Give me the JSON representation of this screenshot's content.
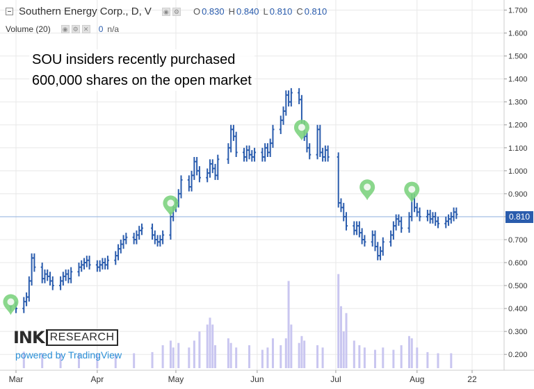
{
  "legend": {
    "symbol_title": "Southern Energy Corp., D, V",
    "ohlc": [
      {
        "key": "O",
        "value": "0.830"
      },
      {
        "key": "H",
        "value": "0.840"
      },
      {
        "key": "L",
        "value": "0.810"
      },
      {
        "key": "C",
        "value": "0.810"
      }
    ],
    "volume_label": "Volume (20)",
    "volume_value": "0",
    "volume_ma": "n/a"
  },
  "annotation": {
    "line1": "SOU insiders recently purchased",
    "line2": "600,000 shares on the open market"
  },
  "branding": {
    "ink": "INK",
    "research": "RESEARCH",
    "powered_by": "powered by TradingView"
  },
  "last_price_label": "0.810",
  "colors": {
    "bars": "#2a5cad",
    "volume": "#c9c6f0",
    "marker": "#7dd37f",
    "grid": "#e8e8e8",
    "price_line": "#8fb1e0",
    "accent": "#2a5cad"
  },
  "chart_data": {
    "type": "ohlc",
    "ylim": [
      0.15,
      1.72
    ],
    "y_ticks": [
      "1.700",
      "1.600",
      "1.500",
      "1.400",
      "1.300",
      "1.200",
      "1.100",
      "1.000",
      "0.900",
      "0.800",
      "0.700",
      "0.600",
      "0.500",
      "0.400",
      "0.300",
      "0.200"
    ],
    "x_ticks": [
      {
        "label": "Mar",
        "date": "2019-03-01"
      },
      {
        "label": "Apr",
        "date": "2019-04-01"
      },
      {
        "label": "May",
        "date": "2019-05-01"
      },
      {
        "label": "Jun",
        "date": "2019-06-01"
      },
      {
        "label": "Jul",
        "date": "2019-07-01"
      },
      {
        "label": "Aug",
        "date": "2019-08-01"
      },
      {
        "label": "22",
        "date": "2019-08-22"
      }
    ],
    "last_price": 0.81,
    "price_series": [
      {
        "date": "2019-02-27",
        "v": 0.41
      },
      {
        "date": "2019-03-01",
        "v": 0.4
      },
      {
        "date": "2019-03-04",
        "v": 0.43
      },
      {
        "date": "2019-03-05",
        "v": 0.45
      },
      {
        "date": "2019-03-06",
        "v": 0.52
      },
      {
        "date": "2019-03-07",
        "v": 0.62
      },
      {
        "date": "2019-03-08",
        "v": 0.58
      },
      {
        "date": "2019-03-11",
        "v": 0.53
      },
      {
        "date": "2019-03-12",
        "v": 0.55
      },
      {
        "date": "2019-03-13",
        "v": 0.54
      },
      {
        "date": "2019-03-14",
        "v": 0.52
      },
      {
        "date": "2019-03-15",
        "v": 0.5
      },
      {
        "date": "2019-03-18",
        "v": 0.52
      },
      {
        "date": "2019-03-19",
        "v": 0.54
      },
      {
        "date": "2019-03-20",
        "v": 0.55
      },
      {
        "date": "2019-03-21",
        "v": 0.53
      },
      {
        "date": "2019-03-22",
        "v": 0.56
      },
      {
        "date": "2019-03-25",
        "v": 0.58
      },
      {
        "date": "2019-03-26",
        "v": 0.59
      },
      {
        "date": "2019-03-27",
        "v": 0.6
      },
      {
        "date": "2019-03-28",
        "v": 0.61
      },
      {
        "date": "2019-03-29",
        "v": 0.59
      },
      {
        "date": "2019-04-01",
        "v": 0.58
      },
      {
        "date": "2019-04-02",
        "v": 0.59
      },
      {
        "date": "2019-04-03",
        "v": 0.6
      },
      {
        "date": "2019-04-04",
        "v": 0.59
      },
      {
        "date": "2019-04-05",
        "v": 0.61
      },
      {
        "date": "2019-04-08",
        "v": 0.63
      },
      {
        "date": "2019-04-09",
        "v": 0.66
      },
      {
        "date": "2019-04-10",
        "v": 0.68
      },
      {
        "date": "2019-04-11",
        "v": 0.7
      },
      {
        "date": "2019-04-12",
        "v": 0.71
      },
      {
        "date": "2019-04-15",
        "v": 0.7
      },
      {
        "date": "2019-04-16",
        "v": 0.72
      },
      {
        "date": "2019-04-17",
        "v": 0.74
      },
      {
        "date": "2019-04-18",
        "v": 0.75
      },
      {
        "date": "2019-04-22",
        "v": 0.72
      },
      {
        "date": "2019-04-23",
        "v": 0.7
      },
      {
        "date": "2019-04-24",
        "v": 0.69
      },
      {
        "date": "2019-04-25",
        "v": 0.7
      },
      {
        "date": "2019-04-26",
        "v": 0.72
      },
      {
        "date": "2019-04-29",
        "v": 0.8
      },
      {
        "date": "2019-04-30",
        "v": 0.84
      },
      {
        "date": "2019-05-01",
        "v": 0.86
      },
      {
        "date": "2019-05-02",
        "v": 0.9
      },
      {
        "date": "2019-05-03",
        "v": 0.96
      },
      {
        "date": "2019-05-06",
        "v": 0.93
      },
      {
        "date": "2019-05-07",
        "v": 0.98
      },
      {
        "date": "2019-05-08",
        "v": 1.04
      },
      {
        "date": "2019-05-09",
        "v": 1.0
      },
      {
        "date": "2019-05-10",
        "v": 0.97
      },
      {
        "date": "2019-05-13",
        "v": 0.99
      },
      {
        "date": "2019-05-14",
        "v": 1.03
      },
      {
        "date": "2019-05-15",
        "v": 1.01
      },
      {
        "date": "2019-05-16",
        "v": 0.98
      },
      {
        "date": "2019-05-17",
        "v": 1.05
      },
      {
        "date": "2019-05-21",
        "v": 1.1
      },
      {
        "date": "2019-05-22",
        "v": 1.18
      },
      {
        "date": "2019-05-23",
        "v": 1.15
      },
      {
        "date": "2019-05-24",
        "v": 1.08
      },
      {
        "date": "2019-05-27",
        "v": 1.06
      },
      {
        "date": "2019-05-28",
        "v": 1.09
      },
      {
        "date": "2019-05-29",
        "v": 1.07
      },
      {
        "date": "2019-05-30",
        "v": 1.06
      },
      {
        "date": "2019-05-31",
        "v": 1.08
      },
      {
        "date": "2019-06-03",
        "v": 1.06
      },
      {
        "date": "2019-06-04",
        "v": 1.1
      },
      {
        "date": "2019-06-05",
        "v": 1.08
      },
      {
        "date": "2019-06-06",
        "v": 1.12
      },
      {
        "date": "2019-06-07",
        "v": 1.18
      },
      {
        "date": "2019-06-10",
        "v": 1.22
      },
      {
        "date": "2019-06-11",
        "v": 1.26
      },
      {
        "date": "2019-06-12",
        "v": 1.33
      },
      {
        "date": "2019-06-13",
        "v": 1.3
      },
      {
        "date": "2019-06-14",
        "v": 1.34
      },
      {
        "date": "2019-06-17",
        "v": 1.31
      },
      {
        "date": "2019-06-18",
        "v": 1.2
      },
      {
        "date": "2019-06-19",
        "v": 1.15
      },
      {
        "date": "2019-06-20",
        "v": 1.1
      },
      {
        "date": "2019-06-21",
        "v": 1.07
      },
      {
        "date": "2019-06-24",
        "v": 1.18
      },
      {
        "date": "2019-06-25",
        "v": 1.08
      },
      {
        "date": "2019-06-26",
        "v": 1.06
      },
      {
        "date": "2019-06-27",
        "v": 1.09
      },
      {
        "date": "2019-06-28",
        "v": 1.06
      },
      {
        "date": "2019-07-02",
        "v": 0.86
      },
      {
        "date": "2019-07-03",
        "v": 0.84
      },
      {
        "date": "2019-07-04",
        "v": 0.8
      },
      {
        "date": "2019-07-05",
        "v": 0.76
      },
      {
        "date": "2019-07-08",
        "v": 0.74
      },
      {
        "date": "2019-07-09",
        "v": 0.76
      },
      {
        "date": "2019-07-10",
        "v": 0.73
      },
      {
        "date": "2019-07-11",
        "v": 0.7
      },
      {
        "date": "2019-07-12",
        "v": 0.69
      },
      {
        "date": "2019-07-15",
        "v": 0.72
      },
      {
        "date": "2019-07-16",
        "v": 0.67
      },
      {
        "date": "2019-07-17",
        "v": 0.63
      },
      {
        "date": "2019-07-18",
        "v": 0.65
      },
      {
        "date": "2019-07-19",
        "v": 0.69
      },
      {
        "date": "2019-07-22",
        "v": 0.72
      },
      {
        "date": "2019-07-23",
        "v": 0.76
      },
      {
        "date": "2019-07-24",
        "v": 0.79
      },
      {
        "date": "2019-07-25",
        "v": 0.78
      },
      {
        "date": "2019-07-26",
        "v": 0.75
      },
      {
        "date": "2019-07-29",
        "v": 0.8
      },
      {
        "date": "2019-07-30",
        "v": 0.88
      },
      {
        "date": "2019-07-31",
        "v": 0.84
      },
      {
        "date": "2019-08-01",
        "v": 0.82
      },
      {
        "date": "2019-08-02",
        "v": 0.8
      },
      {
        "date": "2019-08-05",
        "v": 0.81
      },
      {
        "date": "2019-08-06",
        "v": 0.79
      },
      {
        "date": "2019-08-07",
        "v": 0.8
      },
      {
        "date": "2019-08-08",
        "v": 0.78
      },
      {
        "date": "2019-08-09",
        "v": 0.77
      },
      {
        "date": "2019-08-12",
        "v": 0.78
      },
      {
        "date": "2019-08-13",
        "v": 0.79
      },
      {
        "date": "2019-08-14",
        "v": 0.8
      },
      {
        "date": "2019-08-15",
        "v": 0.82
      },
      {
        "date": "2019-08-16",
        "v": 0.81
      }
    ],
    "volume_series": [
      {
        "date": "2019-03-04",
        "v": 0.212
      },
      {
        "date": "2019-03-11",
        "v": 0.205
      },
      {
        "date": "2019-03-18",
        "v": 0.202
      },
      {
        "date": "2019-03-25",
        "v": 0.205
      },
      {
        "date": "2019-04-01",
        "v": 0.202
      },
      {
        "date": "2019-04-08",
        "v": 0.2
      },
      {
        "date": "2019-04-15",
        "v": 0.205
      },
      {
        "date": "2019-04-22",
        "v": 0.21
      },
      {
        "date": "2019-04-26",
        "v": 0.24
      },
      {
        "date": "2019-04-29",
        "v": 0.26
      },
      {
        "date": "2019-04-30",
        "v": 0.23
      },
      {
        "date": "2019-05-02",
        "v": 0.25
      },
      {
        "date": "2019-05-06",
        "v": 0.23
      },
      {
        "date": "2019-05-08",
        "v": 0.26
      },
      {
        "date": "2019-05-10",
        "v": 0.3
      },
      {
        "date": "2019-05-13",
        "v": 0.33
      },
      {
        "date": "2019-05-14",
        "v": 0.36
      },
      {
        "date": "2019-05-15",
        "v": 0.33
      },
      {
        "date": "2019-05-16",
        "v": 0.24
      },
      {
        "date": "2019-05-21",
        "v": 0.27
      },
      {
        "date": "2019-05-22",
        "v": 0.25
      },
      {
        "date": "2019-05-24",
        "v": 0.23
      },
      {
        "date": "2019-05-29",
        "v": 0.24
      },
      {
        "date": "2019-06-03",
        "v": 0.22
      },
      {
        "date": "2019-06-05",
        "v": 0.23
      },
      {
        "date": "2019-06-07",
        "v": 0.27
      },
      {
        "date": "2019-06-10",
        "v": 0.24
      },
      {
        "date": "2019-06-12",
        "v": 0.27
      },
      {
        "date": "2019-06-13",
        "v": 0.52
      },
      {
        "date": "2019-06-14",
        "v": 0.33
      },
      {
        "date": "2019-06-17",
        "v": 0.25
      },
      {
        "date": "2019-06-18",
        "v": 0.28
      },
      {
        "date": "2019-06-19",
        "v": 0.26
      },
      {
        "date": "2019-06-24",
        "v": 0.24
      },
      {
        "date": "2019-06-26",
        "v": 0.23
      },
      {
        "date": "2019-07-02",
        "v": 0.55
      },
      {
        "date": "2019-07-03",
        "v": 0.41
      },
      {
        "date": "2019-07-04",
        "v": 0.3
      },
      {
        "date": "2019-07-05",
        "v": 0.38
      },
      {
        "date": "2019-07-08",
        "v": 0.26
      },
      {
        "date": "2019-07-10",
        "v": 0.24
      },
      {
        "date": "2019-07-12",
        "v": 0.23
      },
      {
        "date": "2019-07-16",
        "v": 0.22
      },
      {
        "date": "2019-07-19",
        "v": 0.23
      },
      {
        "date": "2019-07-23",
        "v": 0.22
      },
      {
        "date": "2019-07-26",
        "v": 0.24
      },
      {
        "date": "2019-07-29",
        "v": 0.28
      },
      {
        "date": "2019-07-30",
        "v": 0.27
      },
      {
        "date": "2019-08-01",
        "v": 0.23
      },
      {
        "date": "2019-08-05",
        "v": 0.21
      },
      {
        "date": "2019-08-09",
        "v": 0.205
      },
      {
        "date": "2019-08-14",
        "v": 0.205
      }
    ],
    "markers": [
      {
        "date": "2019-02-27",
        "v": 0.42
      },
      {
        "date": "2019-04-29",
        "v": 0.85
      },
      {
        "date": "2019-06-18",
        "v": 1.18
      },
      {
        "date": "2019-07-13",
        "v": 0.92
      },
      {
        "date": "2019-07-30",
        "v": 0.91
      }
    ],
    "grid": true
  }
}
